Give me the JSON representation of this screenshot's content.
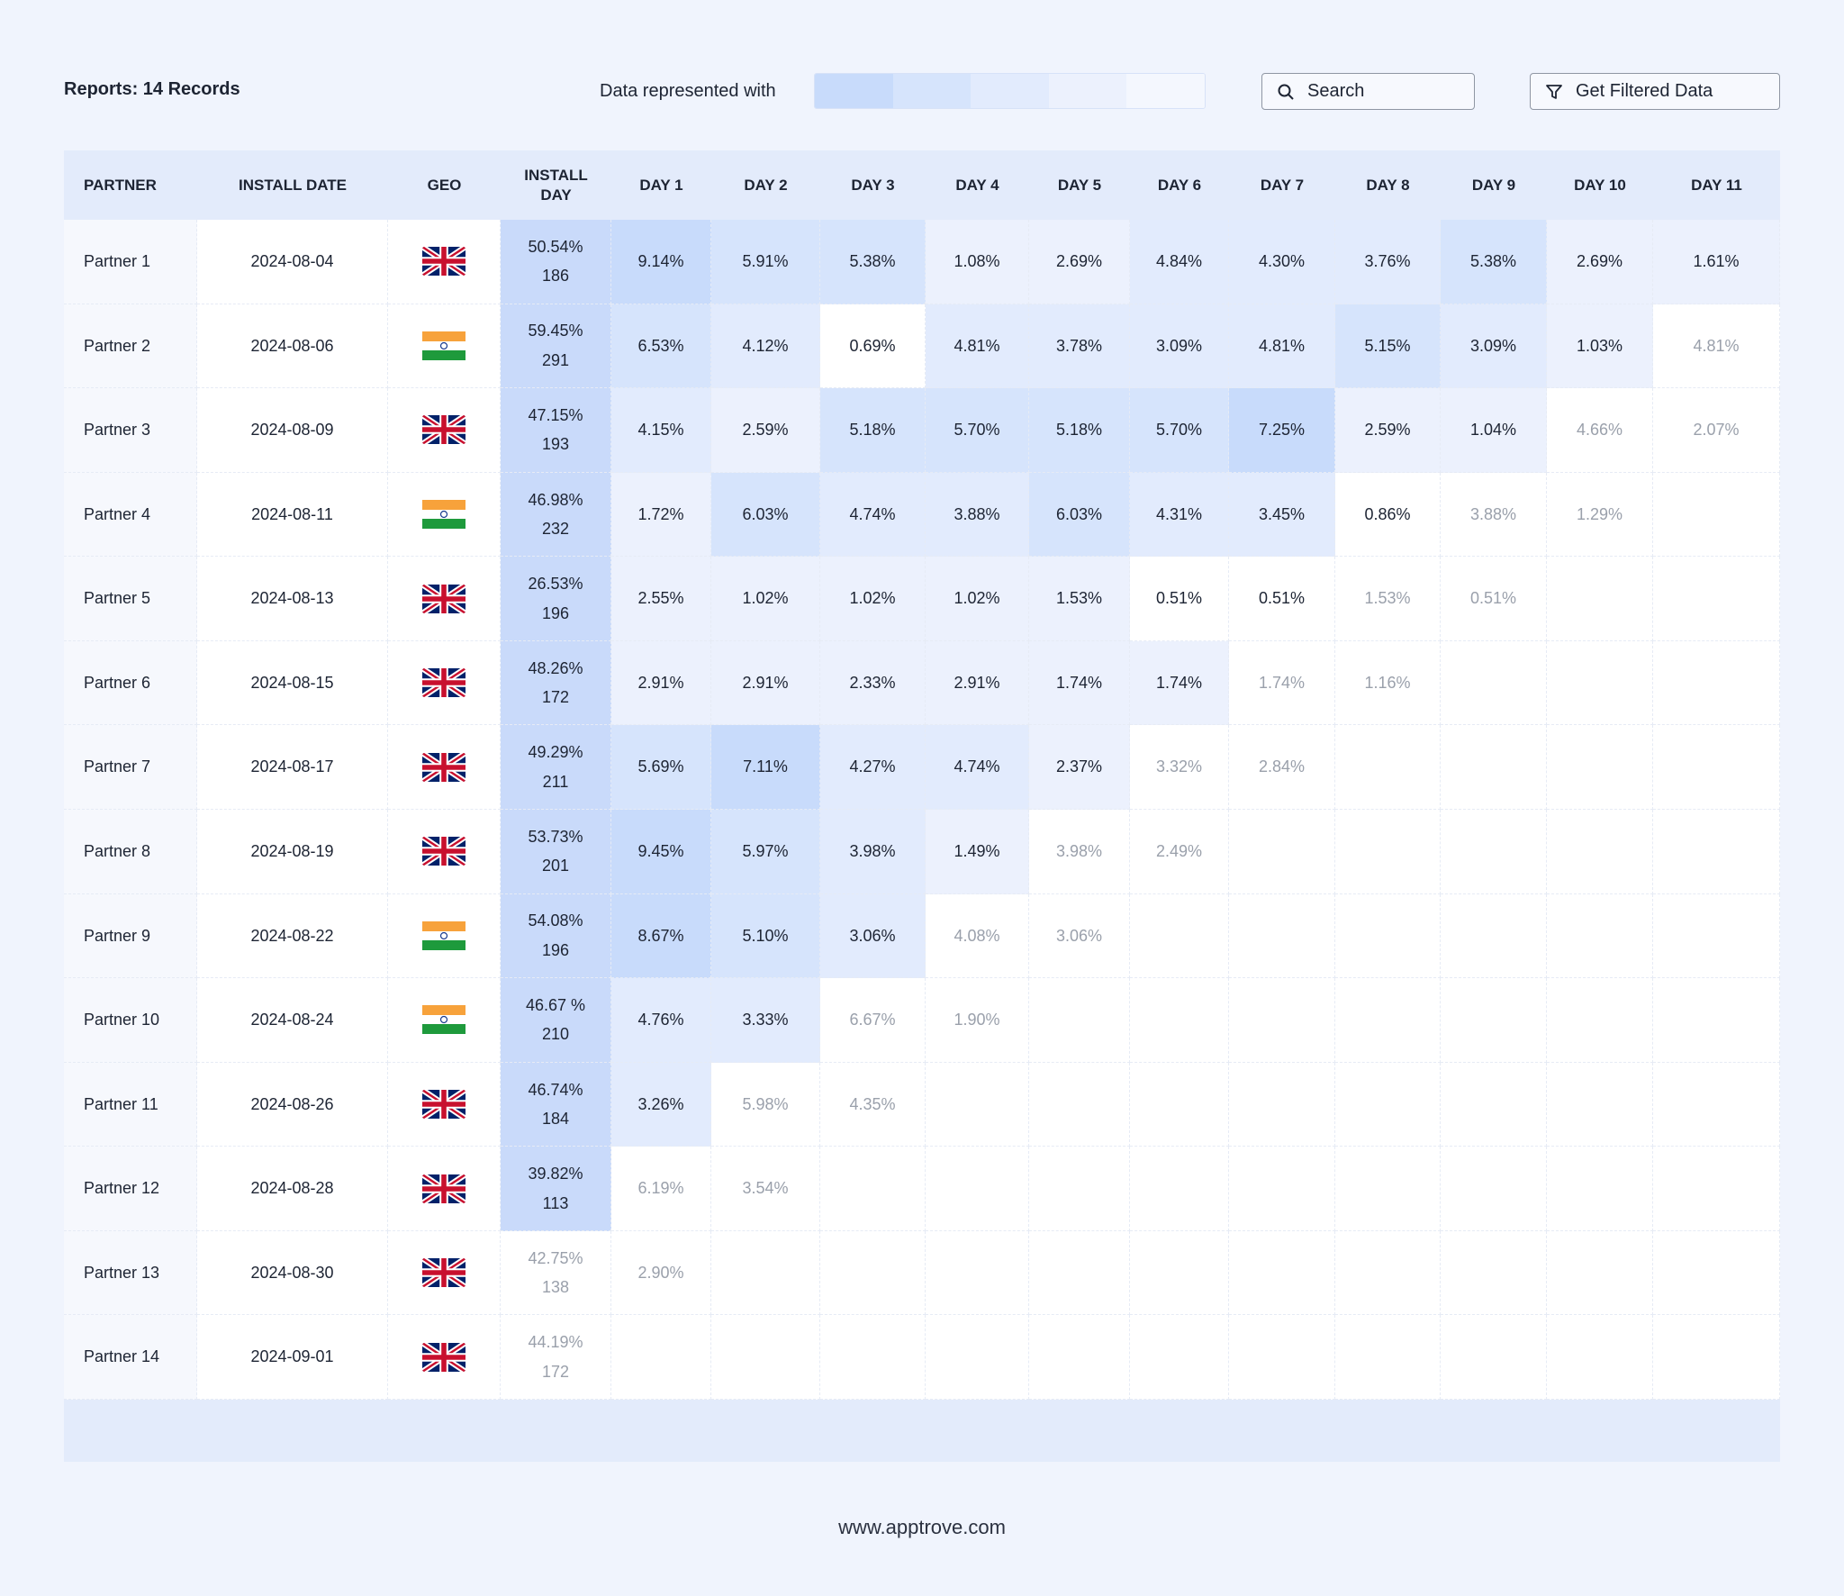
{
  "header": {
    "title": "Reports: 14 Records",
    "legend_label": "Data represented with",
    "search_placeholder": "Search",
    "filter_button": "Get Filtered Data"
  },
  "table": {
    "columns": [
      "PARTNER",
      "INSTALL DATE",
      "GEO",
      "INSTALL DAY",
      "DAY 1",
      "DAY 2",
      "DAY 3",
      "DAY 4",
      "DAY 5",
      "DAY 6",
      "DAY 7",
      "DAY 8",
      "DAY 9",
      "DAY 10",
      "DAY 11"
    ],
    "rows": [
      {
        "partner": "Partner 1",
        "install_date": "2024-08-04",
        "geo": "uk",
        "install_day": {
          "rate": "50.54%",
          "count": 186
        },
        "days": [
          "9.14%",
          "5.91%",
          "5.38%",
          "1.08%",
          "2.69%",
          "4.84%",
          "4.30%",
          "3.76%",
          "5.38%",
          "2.69%",
          "1.61%"
        ]
      },
      {
        "partner": "Partner 2",
        "install_date": "2024-08-06",
        "geo": "in",
        "install_day": {
          "rate": "59.45%",
          "count": 291
        },
        "days": [
          "6.53%",
          "4.12%",
          "0.69%",
          "4.81%",
          "3.78%",
          "3.09%",
          "4.81%",
          "5.15%",
          "3.09%",
          "1.03%",
          "4.81%"
        ]
      },
      {
        "partner": "Partner 3",
        "install_date": "2024-08-09",
        "geo": "uk",
        "install_day": {
          "rate": "47.15%",
          "count": 193
        },
        "days": [
          "4.15%",
          "2.59%",
          "5.18%",
          "5.70%",
          "5.18%",
          "5.70%",
          "7.25%",
          "2.59%",
          "1.04%",
          "4.66%",
          "2.07%"
        ]
      },
      {
        "partner": "Partner 4",
        "install_date": "2024-08-11",
        "geo": "in",
        "install_day": {
          "rate": "46.98%",
          "count": 232
        },
        "days": [
          "1.72%",
          "6.03%",
          "4.74%",
          "3.88%",
          "6.03%",
          "4.31%",
          "3.45%",
          "0.86%",
          "3.88%",
          "1.29%"
        ]
      },
      {
        "partner": "Partner 5",
        "install_date": "2024-08-13",
        "geo": "uk",
        "install_day": {
          "rate": "26.53%",
          "count": 196
        },
        "days": [
          "2.55%",
          "1.02%",
          "1.02%",
          "1.02%",
          "1.53%",
          "0.51%",
          "0.51%",
          "1.53%",
          "0.51%"
        ]
      },
      {
        "partner": "Partner 6",
        "install_date": "2024-08-15",
        "geo": "uk",
        "install_day": {
          "rate": "48.26%",
          "count": 172
        },
        "days": [
          "2.91%",
          "2.91%",
          "2.33%",
          "2.91%",
          "1.74%",
          "1.74%",
          "1.74%",
          "1.16%"
        ]
      },
      {
        "partner": "Partner 7",
        "install_date": "2024-08-17",
        "geo": "uk",
        "install_day": {
          "rate": "49.29%",
          "count": 211
        },
        "days": [
          "5.69%",
          "7.11%",
          "4.27%",
          "4.74%",
          "2.37%",
          "3.32%",
          "2.84%"
        ]
      },
      {
        "partner": "Partner 8",
        "install_date": "2024-08-19",
        "geo": "uk",
        "install_day": {
          "rate": "53.73%",
          "count": 201
        },
        "days": [
          "9.45%",
          "5.97%",
          "3.98%",
          "1.49%",
          "3.98%",
          "2.49%"
        ]
      },
      {
        "partner": "Partner 9",
        "install_date": "2024-08-22",
        "geo": "in",
        "install_day": {
          "rate": "54.08%",
          "count": 196
        },
        "days": [
          "8.67%",
          "5.10%",
          "3.06%",
          "4.08%",
          "3.06%"
        ]
      },
      {
        "partner": "Partner 10",
        "install_date": "2024-08-24",
        "geo": "in",
        "install_day": {
          "rate": "46.67 %",
          "count": 210
        },
        "days": [
          "4.76%",
          "3.33%",
          "6.67%",
          "1.90%"
        ]
      },
      {
        "partner": "Partner 11",
        "install_date": "2024-08-26",
        "geo": "uk",
        "install_day": {
          "rate": "46.74%",
          "count": 184
        },
        "days": [
          "3.26%",
          "5.98%",
          "4.35%"
        ]
      },
      {
        "partner": "Partner 12",
        "install_date": "2024-08-28",
        "geo": "uk",
        "install_day": {
          "rate": "39.82%",
          "count": 113
        },
        "days": [
          "6.19%",
          "3.54%"
        ]
      },
      {
        "partner": "Partner 13",
        "install_date": "2024-08-30",
        "geo": "uk",
        "install_day": {
          "rate": "42.75%",
          "count": 138
        },
        "days": [
          "2.90%"
        ]
      },
      {
        "partner": "Partner 14",
        "install_date": "2024-09-01",
        "geo": "uk",
        "install_day": {
          "rate": "44.19%",
          "count": 172
        },
        "days": []
      }
    ]
  },
  "footer": {
    "url": "www.apptrove.com"
  }
}
